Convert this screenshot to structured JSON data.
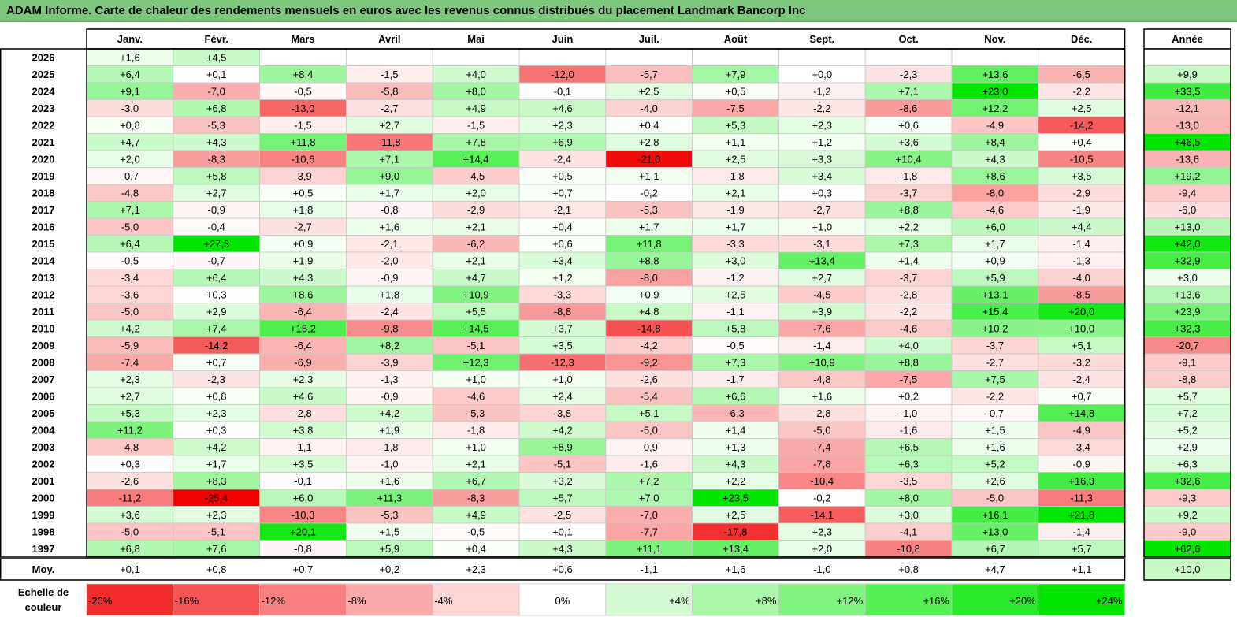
{
  "title": "ADAM Informe. Carte de chaleur des rendements mensuels en euros avec les revenus connus distribués du placement Landmark Bancorp Inc",
  "chart_data": {
    "type": "heatmap",
    "title": "ADAM Informe. Carte de chaleur des rendements mensuels en euros avec les revenus connus distribués du placement Landmark Bancorp Inc",
    "months": [
      "Janv.",
      "Févr.",
      "Mars",
      "Avril",
      "Mai",
      "Juin",
      "Juil.",
      "Août",
      "Sept.",
      "Oct.",
      "Nov.",
      "Déc."
    ],
    "year_header": "Année",
    "rows": [
      {
        "year": "2026",
        "values": [
          "+1,6",
          "+4,5",
          "",
          "",
          "",
          "",
          "",
          "",
          "",
          "",
          "",
          ""
        ],
        "total": ""
      },
      {
        "year": "2025",
        "values": [
          "+6,4",
          "+0,1",
          "+8,4",
          "-1,5",
          "+4,0",
          "-12,0",
          "-5,7",
          "+7,9",
          "+0,0",
          "-2,3",
          "+13,6",
          "-6,5"
        ],
        "total": "+9,9"
      },
      {
        "year": "2024",
        "values": [
          "+9,1",
          "-7,0",
          "-0,5",
          "-5,8",
          "+8,0",
          "-0,1",
          "+2,5",
          "+0,5",
          "-1,2",
          "+7,1",
          "+23,0",
          "-2,2"
        ],
        "total": "+33,5"
      },
      {
        "year": "2023",
        "values": [
          "-3,0",
          "+6,8",
          "-13,0",
          "-2,7",
          "+4,9",
          "+4,6",
          "-4,0",
          "-7,5",
          "-2,2",
          "-8,6",
          "+12,2",
          "+2,5"
        ],
        "total": "-12,1"
      },
      {
        "year": "2022",
        "values": [
          "+0,8",
          "-5,3",
          "-1,5",
          "+2,7",
          "-1,5",
          "+2,3",
          "+0,4",
          "+5,3",
          "+2,3",
          "+0,6",
          "-4,9",
          "-14,2"
        ],
        "total": "-13,0"
      },
      {
        "year": "2021",
        "values": [
          "+4,7",
          "+4,3",
          "+11,8",
          "-11,8",
          "+7,8",
          "+6,9",
          "+2,8",
          "+1,1",
          "+1,2",
          "+3,6",
          "+8,4",
          "+0,4"
        ],
        "total": "+46,5"
      },
      {
        "year": "2020",
        "values": [
          "+2,0",
          "-8,3",
          "-10,6",
          "+7,1",
          "+14,4",
          "-2,4",
          "-21,0",
          "+2,5",
          "+3,3",
          "+10,4",
          "+4,3",
          "-10,5"
        ],
        "total": "-13,6"
      },
      {
        "year": "2019",
        "values": [
          "-0,7",
          "+5,8",
          "-3,9",
          "+9,0",
          "-4,5",
          "+0,5",
          "+1,1",
          "-1,8",
          "+3,4",
          "-1,8",
          "+8,6",
          "+3,5"
        ],
        "total": "+19,2"
      },
      {
        "year": "2018",
        "values": [
          "-4,8",
          "+2,7",
          "+0,5",
          "+1,7",
          "+2,0",
          "+0,7",
          "-0,2",
          "+2,1",
          "+0,3",
          "-3,7",
          "-8,0",
          "-2,9"
        ],
        "total": "-9,4"
      },
      {
        "year": "2017",
        "values": [
          "+7,1",
          "-0,9",
          "+1,8",
          "-0,8",
          "-2,9",
          "-2,1",
          "-5,3",
          "-1,9",
          "-2,7",
          "+8,8",
          "-4,6",
          "-1,9"
        ],
        "total": "-6,0"
      },
      {
        "year": "2016",
        "values": [
          "-5,0",
          "-0,4",
          "-2,7",
          "+1,6",
          "+2,1",
          "+0,4",
          "+1,7",
          "+1,7",
          "+1,0",
          "+2,2",
          "+6,0",
          "+4,4"
        ],
        "total": "+13,0"
      },
      {
        "year": "2015",
        "values": [
          "+6,4",
          "+27,3",
          "+0,9",
          "-2,1",
          "-6,2",
          "+0,6",
          "+11,8",
          "-3,3",
          "-3,1",
          "+7,3",
          "+1,7",
          "-1,4"
        ],
        "total": "+42,0"
      },
      {
        "year": "2014",
        "values": [
          "-0,5",
          "-0,7",
          "+1,9",
          "-2,0",
          "+2,1",
          "+3,4",
          "+8,8",
          "+3,0",
          "+13,4",
          "+1,4",
          "+0,9",
          "-1,3"
        ],
        "total": "+32,9"
      },
      {
        "year": "2013",
        "values": [
          "-3,4",
          "+6,4",
          "+4,3",
          "-0,9",
          "+4,7",
          "+1,2",
          "-8,0",
          "-1,2",
          "+2,7",
          "-3,7",
          "+5,9",
          "-4,0"
        ],
        "total": "+3,0"
      },
      {
        "year": "2012",
        "values": [
          "-3,6",
          "+0,3",
          "+8,6",
          "+1,8",
          "+10,9",
          "-3,3",
          "+0,9",
          "+2,5",
          "-4,5",
          "-2,8",
          "+13,1",
          "-8,5"
        ],
        "total": "+13,6"
      },
      {
        "year": "2011",
        "values": [
          "-5,0",
          "+2,9",
          "-6,4",
          "-2,4",
          "+5,5",
          "-8,8",
          "+4,8",
          "-1,1",
          "+3,9",
          "-2,2",
          "+15,4",
          "+20,0"
        ],
        "total": "+23,9"
      },
      {
        "year": "2010",
        "values": [
          "+4,2",
          "+7,4",
          "+15,2",
          "-9,8",
          "+14,5",
          "+3,7",
          "-14,8",
          "+5,8",
          "-7,6",
          "-4,6",
          "+10,2",
          "+10,0"
        ],
        "total": "+32,3"
      },
      {
        "year": "2009",
        "values": [
          "-5,9",
          "-14,2",
          "-6,4",
          "+8,2",
          "-5,1",
          "+3,5",
          "-4,2",
          "-0,5",
          "-1,4",
          "+4,0",
          "-3,7",
          "+5,1"
        ],
        "total": "-20,7"
      },
      {
        "year": "2008",
        "values": [
          "-7,4",
          "+0,7",
          "-6,9",
          "-3,9",
          "+12,3",
          "-12,3",
          "-9,2",
          "+7,3",
          "+10,9",
          "+8,8",
          "-2,7",
          "-3,2"
        ],
        "total": "-9,1"
      },
      {
        "year": "2007",
        "values": [
          "+2,3",
          "-2,3",
          "+2,3",
          "-1,3",
          "+1,0",
          "+1,0",
          "-2,6",
          "-1,7",
          "-4,8",
          "-7,5",
          "+7,5",
          "-2,4"
        ],
        "total": "-8,8"
      },
      {
        "year": "2006",
        "values": [
          "+2,7",
          "+0,8",
          "+4,6",
          "-0,9",
          "-4,6",
          "+2,4",
          "-5,4",
          "+6,6",
          "+1,6",
          "+0,2",
          "-2,2",
          "+0,7"
        ],
        "total": "+5,7"
      },
      {
        "year": "2005",
        "values": [
          "+5,3",
          "+2,3",
          "-2,8",
          "+4,2",
          "-5,3",
          "-3,8",
          "+5,1",
          "-6,3",
          "-2,8",
          "-1,0",
          "-0,7",
          "+14,8"
        ],
        "total": "+7,2"
      },
      {
        "year": "2004",
        "values": [
          "+11,2",
          "+0,3",
          "+3,8",
          "+1,9",
          "-1,8",
          "+4,2",
          "-5,0",
          "+1,4",
          "-5,0",
          "-1,6",
          "+1,5",
          "-4,9"
        ],
        "total": "+5,2"
      },
      {
        "year": "2003",
        "values": [
          "-4,8",
          "+4,2",
          "-1,1",
          "-1,8",
          "+1,0",
          "+8,9",
          "-0,9",
          "+1,3",
          "-7,4",
          "+6,5",
          "+1,6",
          "-3,4"
        ],
        "total": "+2,9"
      },
      {
        "year": "2002",
        "values": [
          "+0,3",
          "+1,7",
          "+3,5",
          "-1,0",
          "+2,1",
          "-5,1",
          "-1,6",
          "+4,3",
          "-7,8",
          "+6,3",
          "+5,2",
          "-0,9"
        ],
        "total": "+6,3"
      },
      {
        "year": "2001",
        "values": [
          "-2,6",
          "+8,3",
          "-0,1",
          "+1,6",
          "+6,7",
          "+3,2",
          "+7,2",
          "+2,2",
          "-10,4",
          "-3,5",
          "+2,6",
          "+16,3"
        ],
        "total": "+32,6"
      },
      {
        "year": "2000",
        "values": [
          "-11,2",
          "-25,4",
          "+6,0",
          "+11,3",
          "-8,3",
          "+5,7",
          "+7,0",
          "+23,5",
          "-0,2",
          "+8,0",
          "-5,0",
          "-11,3"
        ],
        "total": "-9,3"
      },
      {
        "year": "1999",
        "values": [
          "+3,6",
          "+2,3",
          "-10,3",
          "-5,3",
          "+4,9",
          "-2,5",
          "-7,0",
          "+2,5",
          "-14,1",
          "+3,0",
          "+16,1",
          "+21,8"
        ],
        "total": "+9,2"
      },
      {
        "year": "1998",
        "values": [
          "-5,0",
          "-5,1",
          "+20,1",
          "+1,5",
          "-0,5",
          "+0,1",
          "-7,7",
          "-17,8",
          "+2,3",
          "-4,1",
          "+13,0",
          "-1,4"
        ],
        "total": "-9,0"
      },
      {
        "year": "1997",
        "values": [
          "+6,8",
          "+7,6",
          "-0,8",
          "+5,9",
          "+0,4",
          "+4,3",
          "+11,1",
          "+13,4",
          "+2,0",
          "-10,8",
          "+6,7",
          "+5,7"
        ],
        "total": "+62,6"
      }
    ],
    "average": {
      "label": "Moy.",
      "values": [
        "+0,1",
        "+0,8",
        "+0,7",
        "+0,2",
        "+2,3",
        "+0,6",
        "-1,1",
        "+1,6",
        "-1,0",
        "+0,8",
        "+4,7",
        "+1,1"
      ],
      "total": "+10,0"
    },
    "scale": {
      "label_lines": [
        "Echelle de",
        "couleur"
      ],
      "steps": [
        "-20%",
        "-16%",
        "-12%",
        "-8%",
        "-4%",
        "0%",
        "+4%",
        "+8%",
        "+12%",
        "+16%",
        "+20%",
        "+24%"
      ]
    },
    "colors": {
      "negative_max": "#f00000",
      "positive_max": "#00e600",
      "neutral": "#ffffff",
      "title_bg": "#7ec87e"
    }
  }
}
